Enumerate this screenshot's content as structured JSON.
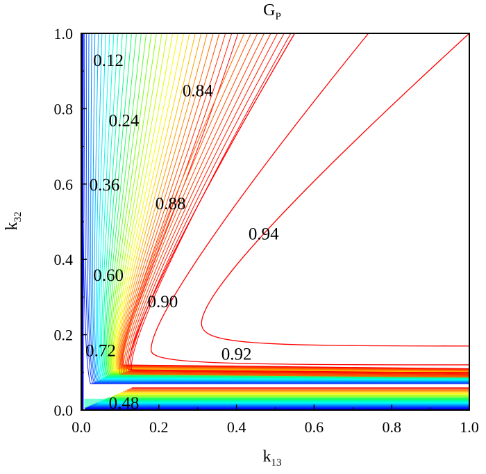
{
  "chart_data": {
    "type": "contour",
    "title": "G",
    "title_subscript": "P",
    "xlabel": "k",
    "xlabel_subscript": "13",
    "ylabel": "k",
    "ylabel_subscript": "32",
    "xlim": [
      0.0,
      1.0
    ],
    "ylim": [
      0.0,
      1.0
    ],
    "xticks": [
      "0.0",
      "0.2",
      "0.4",
      "0.6",
      "0.8",
      "1.0"
    ],
    "yticks": [
      "0.0",
      "0.2",
      "0.4",
      "0.6",
      "0.8",
      "1.0"
    ],
    "colormap": [
      "#00008b",
      "#0000ff",
      "#0080ff",
      "#00ffff",
      "#00ff80",
      "#80ff00",
      "#ffff00",
      "#ff8000",
      "#ff0000"
    ],
    "labeled_levels": [
      {
        "text": "0.12",
        "x": 0.07,
        "y": 0.93
      },
      {
        "text": "0.24",
        "x": 0.11,
        "y": 0.77
      },
      {
        "text": "0.36",
        "x": 0.06,
        "y": 0.6
      },
      {
        "text": "0.60",
        "x": 0.07,
        "y": 0.36
      },
      {
        "text": "0.72",
        "x": 0.05,
        "y": 0.16
      },
      {
        "text": "0.48",
        "x": 0.11,
        "y": 0.02
      },
      {
        "text": "0.84",
        "x": 0.3,
        "y": 0.85
      },
      {
        "text": "0.88",
        "x": 0.23,
        "y": 0.55
      },
      {
        "text": "0.90",
        "x": 0.21,
        "y": 0.29
      },
      {
        "text": "0.92",
        "x": 0.4,
        "y": 0.15
      },
      {
        "text": "0.94",
        "x": 0.47,
        "y": 0.47
      }
    ],
    "red_contours": [
      {
        "level": 0.94,
        "vertex": [
          0.31,
          0.23
        ],
        "asymptote_y": 0.17,
        "upper_end": [
          1.0,
          1.0
        ]
      },
      {
        "level": 0.92,
        "vertex": [
          0.18,
          0.16
        ],
        "asymptote_y": 0.12,
        "upper_end": [
          0.74,
          1.0
        ]
      },
      {
        "level": 0.9,
        "vertex": [
          0.12,
          0.11
        ],
        "asymptote_y": 0.1,
        "upper_end": [
          0.55,
          1.0
        ]
      }
    ],
    "grid": false
  }
}
